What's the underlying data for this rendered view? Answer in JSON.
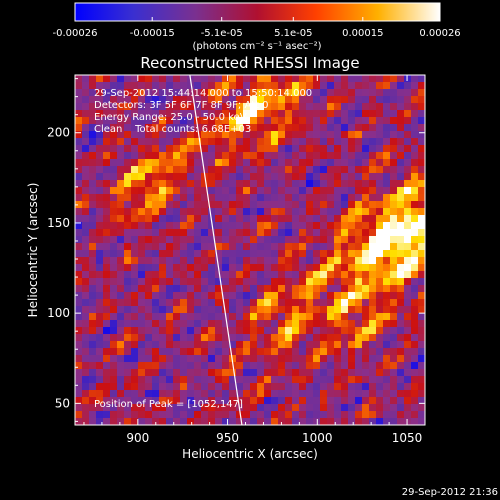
{
  "chart_data": {
    "type": "heatmap",
    "title": "Reconstructed RHESSI Image",
    "xlabel": "Heliocentric X (arcsec)",
    "ylabel": "Heliocentric Y (arcsec)",
    "xlim": [
      865,
      1060
    ],
    "ylim": [
      38,
      232
    ],
    "x_ticks": [
      900,
      950,
      1000,
      1050
    ],
    "y_ticks": [
      50,
      100,
      150,
      200
    ],
    "colorbar": {
      "ticks": [
        "-0.00026",
        "-0.00015",
        "-5.1e-05",
        "5.1e-05",
        "0.00015",
        "0.00026"
      ],
      "tick_values": [
        -0.00026,
        -0.00015,
        -5.1e-05,
        5.1e-05,
        0.00015,
        0.00026
      ],
      "range": [
        -0.00026,
        0.00026
      ],
      "units": "(photons cm⁻² s⁻¹ asec⁻²)",
      "colors": [
        "#0000ff",
        "#5a2ea8",
        "#8a2f8a",
        "#cc1010",
        "#ff7a00",
        "#ffe000",
        "#ffffff"
      ]
    },
    "annotations": [
      "29-Sep-2012 15:44:14.000 to 15:50:14.000",
      "Detectors: 3F 5F 6F 7F 8F 9F; Att 0",
      "Energy Range: 25.0 - 50.0 keV",
      "Clean    Total counts: 6.68E+03"
    ],
    "peak_label": "Position of Peak = [1052,147]",
    "peak": [
      1052,
      147
    ],
    "limb_line": [
      [
        929,
        232
      ],
      [
        958,
        38
      ]
    ],
    "grid": false
  },
  "footer": {
    "timestamp": "29-Sep-2012 21:36"
  }
}
